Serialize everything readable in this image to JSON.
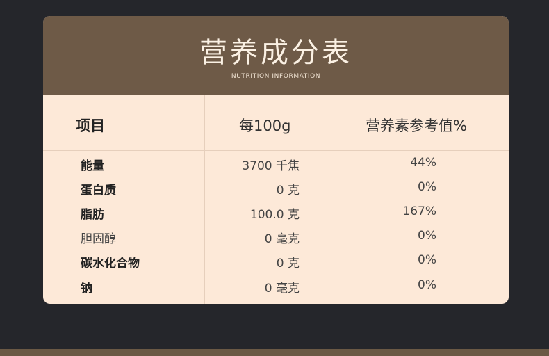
{
  "header": {
    "title": "营养成分表",
    "subtitle": "NUTRITION INFORMATION"
  },
  "columns": [
    "项目",
    "每100g",
    "营养素参考值%"
  ],
  "rows": [
    {
      "item": "能量",
      "per100g": "3700 千焦",
      "nrv": "44%"
    },
    {
      "item": "蛋白质",
      "per100g": "0 克",
      "nrv": "0%"
    },
    {
      "item": "脂肪",
      "per100g": "100.0 克",
      "nrv": "167%"
    },
    {
      "item": "胆固醇",
      "per100g": "0 毫克",
      "nrv": "0%"
    },
    {
      "item": "碳水化合物",
      "per100g": "0 克",
      "nrv": "0%"
    },
    {
      "item": "钠",
      "per100g": "0 毫克",
      "nrv": "0%"
    }
  ],
  "colors": {
    "background": "#25262b",
    "header": "#6e5a47",
    "table": "#fde9d8"
  }
}
